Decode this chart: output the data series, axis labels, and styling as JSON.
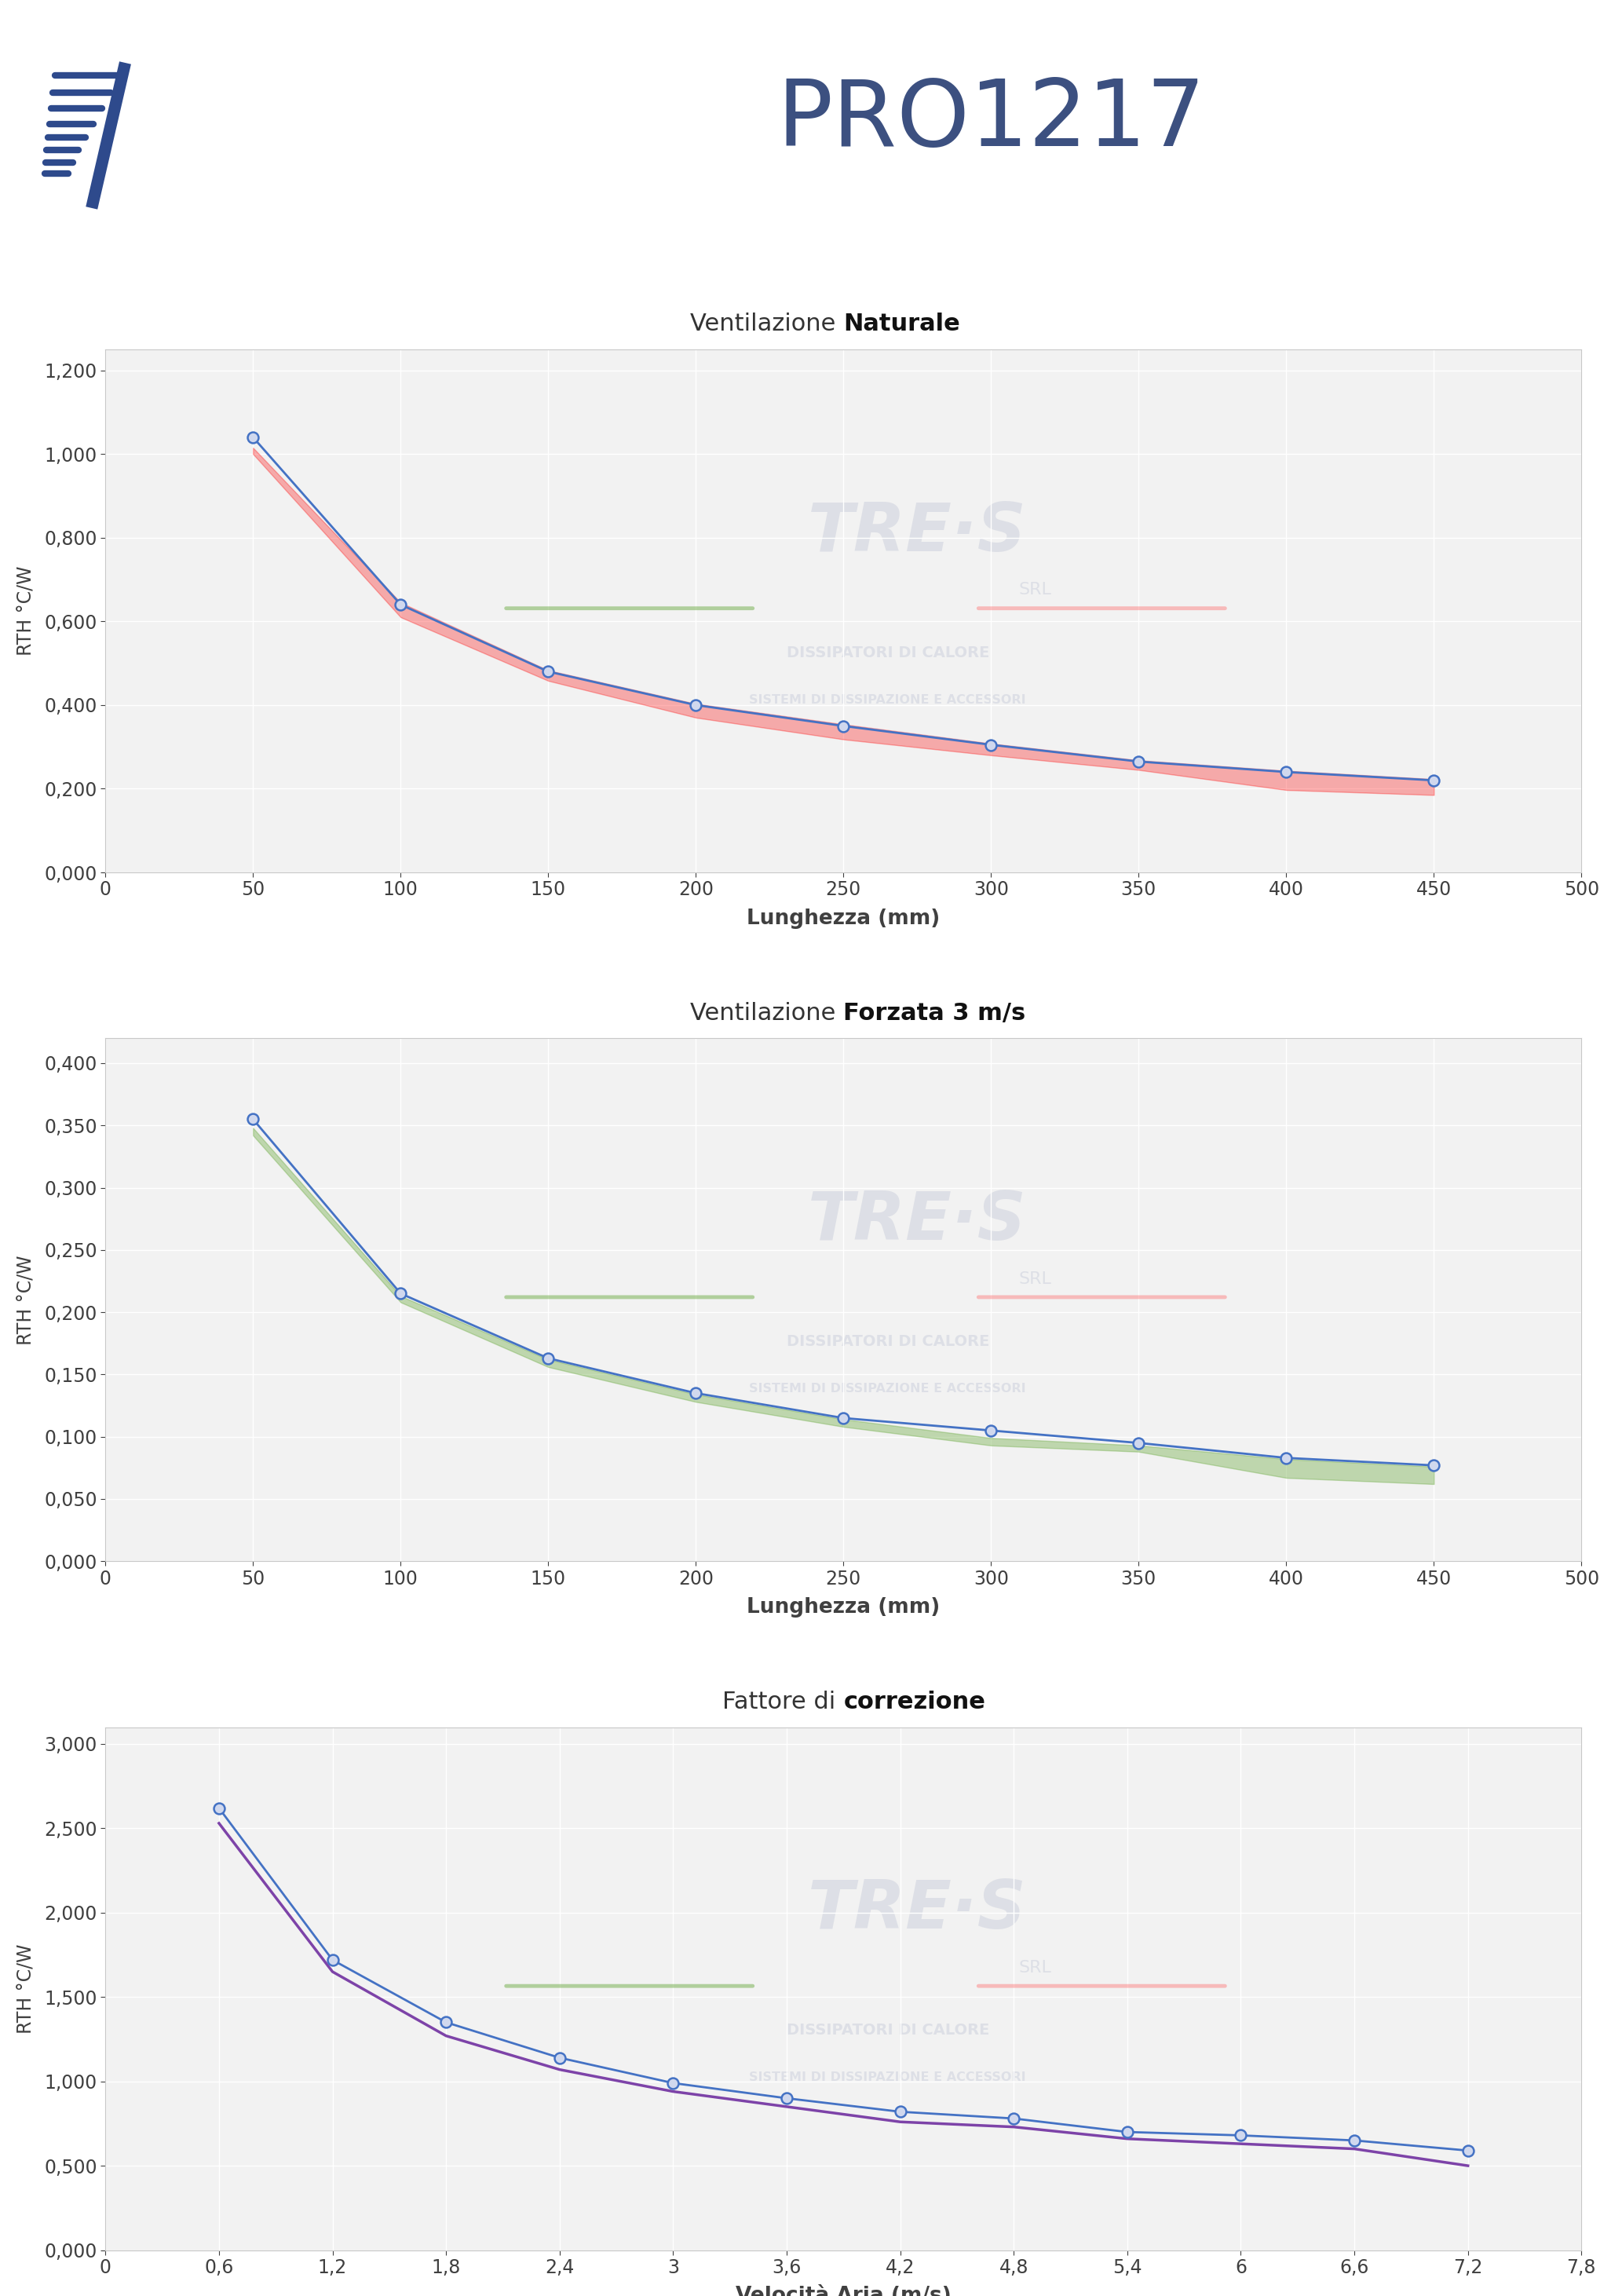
{
  "chart1": {
    "title_plain": "Ventilazione ",
    "title_bold": "Naturale",
    "xlabel": "Lunghezza (mm)",
    "ylabel": "RTH °C/W",
    "x": [
      50,
      100,
      150,
      200,
      250,
      300,
      350,
      400,
      450
    ],
    "y_blue": [
      1.04,
      0.64,
      0.48,
      0.4,
      0.35,
      0.305,
      0.265,
      0.24,
      0.22
    ],
    "y_red_upper": [
      1.015,
      0.645,
      0.483,
      0.403,
      0.354,
      0.308,
      0.268,
      0.243,
      0.223
    ],
    "y_red_lower": [
      1.0,
      0.61,
      0.458,
      0.37,
      0.318,
      0.28,
      0.245,
      0.197,
      0.185
    ],
    "xlim": [
      0,
      500
    ],
    "ylim": [
      0.0,
      1.25
    ],
    "yticks": [
      0.0,
      0.2,
      0.4,
      0.6,
      0.8,
      1.0,
      1.2
    ],
    "xticks": [
      0,
      50,
      100,
      150,
      200,
      250,
      300,
      350,
      400,
      450,
      500
    ]
  },
  "chart2": {
    "title_plain": "Ventilazione ",
    "title_bold": "Forzata 3 m/s",
    "xlabel": "Lunghezza (mm)",
    "ylabel": "RTH °C/W",
    "x": [
      50,
      100,
      150,
      200,
      250,
      300,
      350,
      400,
      450
    ],
    "y_blue": [
      0.355,
      0.215,
      0.163,
      0.135,
      0.115,
      0.105,
      0.095,
      0.083,
      0.077
    ],
    "y_green_upper": [
      0.348,
      0.213,
      0.162,
      0.134,
      0.114,
      0.099,
      0.093,
      0.082,
      0.076
    ],
    "y_green_lower": [
      0.342,
      0.208,
      0.156,
      0.128,
      0.108,
      0.093,
      0.088,
      0.067,
      0.062
    ],
    "xlim": [
      0,
      500
    ],
    "ylim": [
      0.0,
      0.42
    ],
    "yticks": [
      0.0,
      0.05,
      0.1,
      0.15,
      0.2,
      0.25,
      0.3,
      0.35,
      0.4
    ],
    "xticks": [
      0,
      50,
      100,
      150,
      200,
      250,
      300,
      350,
      400,
      450,
      500
    ]
  },
  "chart3": {
    "title_plain": "Fattore di ",
    "title_bold": "correzione",
    "xlabel": "Velocità Aria (m/s)",
    "ylabel": "RTH °C/W",
    "x": [
      0.6,
      1.2,
      1.8,
      2.4,
      3.0,
      3.6,
      4.2,
      4.8,
      5.4,
      6.0,
      6.6,
      7.2
    ],
    "y_blue": [
      2.62,
      1.72,
      1.35,
      1.14,
      0.99,
      0.9,
      0.82,
      0.78,
      0.7,
      0.68,
      0.65,
      0.59
    ],
    "y_purple": [
      2.53,
      1.65,
      1.27,
      1.07,
      0.94,
      0.85,
      0.76,
      0.73,
      0.66,
      0.63,
      0.6,
      0.5
    ],
    "xlim": [
      0,
      7.8
    ],
    "ylim": [
      0.0,
      3.1
    ],
    "yticks": [
      0.0,
      0.5,
      1.0,
      1.5,
      2.0,
      2.5,
      3.0
    ],
    "xticks": [
      0,
      0.6,
      1.2,
      1.8,
      2.4,
      3.0,
      3.6,
      4.2,
      4.8,
      5.4,
      6.0,
      6.6,
      7.2,
      7.8
    ]
  },
  "colors": {
    "blue_line": "#4472C4",
    "blue_marker_face": "#D0D8EE",
    "blue_marker_edge": "#4472C4",
    "red_fill": "#FF0000",
    "green_fill": "#70AD47",
    "purple_line": "#7030A0",
    "header_bg": "#D6D9E8",
    "chart_bg": "#F2F2F2",
    "grid_color": "#FFFFFF",
    "border_color": "#C8C8C8",
    "watermark_logo": "#C5CAD8",
    "watermark_text": "#C8CCd8",
    "axis_text_color": "#404040",
    "flag_green": "#70AD47",
    "flag_red": "#FF6666"
  },
  "title": "PRO1217",
  "title_color": "#3C5080",
  "bg_color": "#FFFFFF"
}
